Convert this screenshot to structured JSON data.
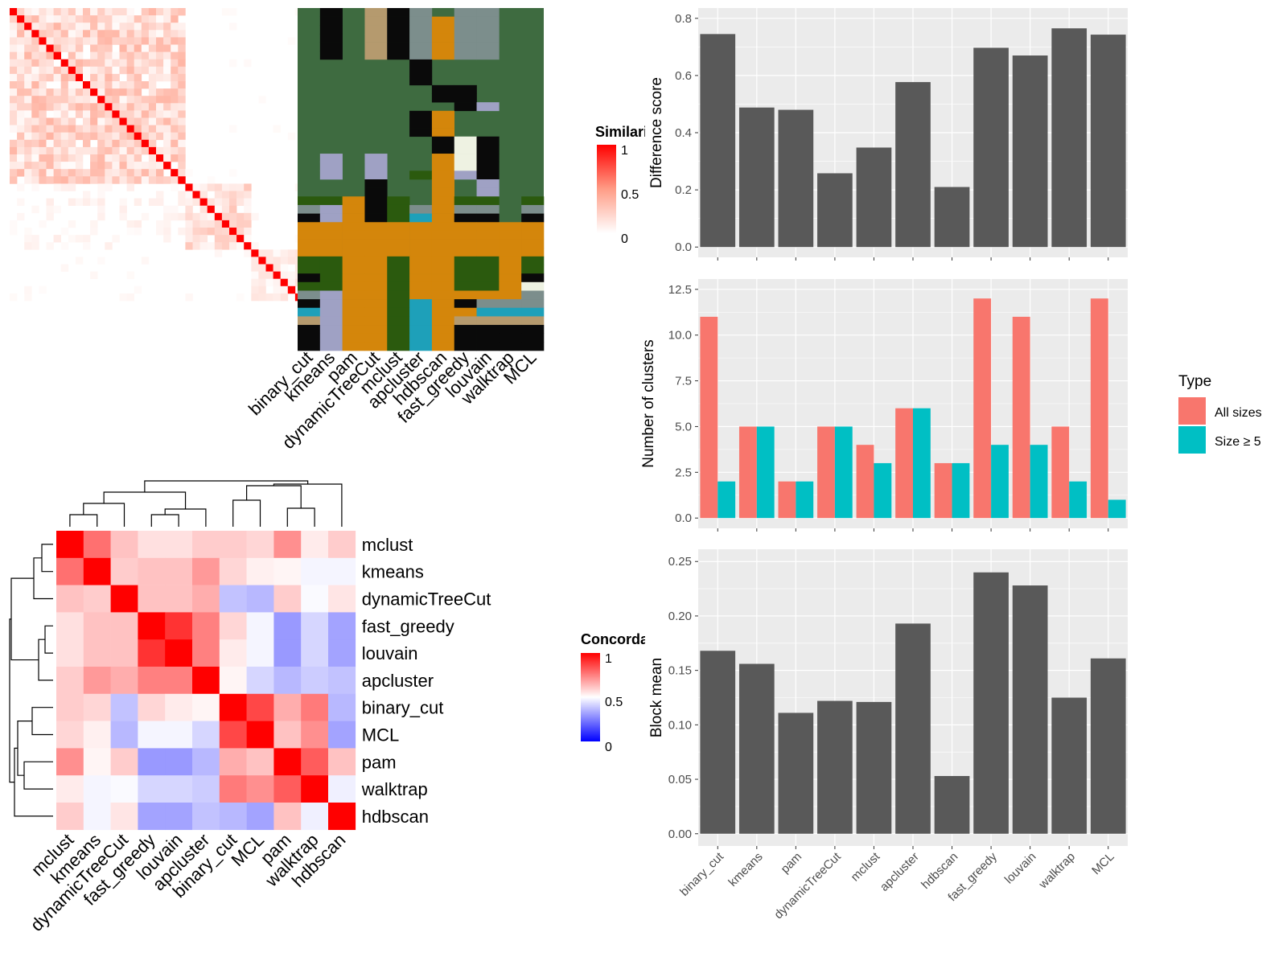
{
  "colors": {
    "panel_bg": "#EBEBEB",
    "grid": "#FFFFFF",
    "bar": "#595959",
    "all_sizes": "#F8766D",
    "size_ge_5": "#00BFC4",
    "sim_high": "#FF0000",
    "conc_low": "#0000FF",
    "conc_high": "#FF0000",
    "cat_green": "#3E6B40",
    "cat_orange": "#D4860B",
    "cat_black": "#0A0A0A",
    "cat_darkgreen": "#2B5A0E",
    "cat_lavender": "#9FA1C4",
    "cat_grey": "#7C8E8C",
    "cat_teal": "#1EA0B9",
    "cat_tan": "#B59A6E",
    "cat_cream": "#EEF2E2"
  },
  "similarity_legend": {
    "title": "Similarity",
    "ticks": [
      "1",
      "0.5",
      "0"
    ]
  },
  "concordance_legend": {
    "title": "Concordance",
    "ticks": [
      "1",
      "0.5",
      "0"
    ]
  },
  "partition_columns": [
    "binary_cut",
    "kmeans",
    "pam",
    "dynamicTreeCut",
    "mclust",
    "apcluster",
    "hdbscan",
    "fast_greedy",
    "louvain",
    "walktrap",
    "MCL"
  ],
  "concordance_rows": [
    "mclust",
    "kmeans",
    "dynamicTreeCut",
    "fast_greedy",
    "louvain",
    "apcluster",
    "binary_cut",
    "MCL",
    "pam",
    "walktrap",
    "hdbscan"
  ],
  "concordance_cols": [
    "mclust",
    "kmeans",
    "dynamicTreeCut",
    "fast_greedy",
    "louvain",
    "apcluster",
    "binary_cut",
    "MCL",
    "pam",
    "walktrap",
    "hdbscan"
  ],
  "concordance_values": [
    [
      1.0,
      0.78,
      0.62,
      0.56,
      0.56,
      0.6,
      0.6,
      0.58,
      0.72,
      0.54,
      0.6
    ],
    [
      0.78,
      1.0,
      0.6,
      0.62,
      0.62,
      0.7,
      0.58,
      0.53,
      0.52,
      0.48,
      0.48
    ],
    [
      0.62,
      0.6,
      1.0,
      0.62,
      0.62,
      0.66,
      0.38,
      0.36,
      0.6,
      0.49,
      0.55
    ],
    [
      0.56,
      0.62,
      0.62,
      1.0,
      0.9,
      0.75,
      0.58,
      0.48,
      0.3,
      0.42,
      0.32
    ],
    [
      0.56,
      0.62,
      0.62,
      0.9,
      1.0,
      0.75,
      0.54,
      0.48,
      0.3,
      0.42,
      0.32
    ],
    [
      0.6,
      0.7,
      0.66,
      0.75,
      0.75,
      1.0,
      0.52,
      0.42,
      0.36,
      0.4,
      0.38
    ],
    [
      0.6,
      0.58,
      0.38,
      0.58,
      0.54,
      0.52,
      1.0,
      0.86,
      0.66,
      0.76,
      0.36
    ],
    [
      0.58,
      0.53,
      0.36,
      0.48,
      0.48,
      0.42,
      0.86,
      1.0,
      0.62,
      0.72,
      0.32
    ],
    [
      0.72,
      0.52,
      0.6,
      0.3,
      0.3,
      0.36,
      0.66,
      0.62,
      1.0,
      0.82,
      0.62
    ],
    [
      0.54,
      0.48,
      0.49,
      0.42,
      0.42,
      0.4,
      0.76,
      0.72,
      0.82,
      1.0,
      0.47
    ],
    [
      0.6,
      0.48,
      0.55,
      0.32,
      0.32,
      0.38,
      0.36,
      0.32,
      0.62,
      0.47,
      1.0
    ]
  ],
  "chart_data": [
    {
      "type": "bar",
      "categories": [
        "binary_cut",
        "kmeans",
        "pam",
        "dynamicTreeCut",
        "mclust",
        "apcluster",
        "hdbscan",
        "fast_greedy",
        "louvain",
        "walktrap",
        "MCL"
      ],
      "values": [
        0.745,
        0.488,
        0.48,
        0.258,
        0.348,
        0.577,
        0.21,
        0.697,
        0.67,
        0.765,
        0.743
      ],
      "ylabel": "Difference score",
      "ylim": [
        0,
        0.8
      ],
      "yticks": [
        "0.0",
        "0.2",
        "0.4",
        "0.6",
        "0.8"
      ],
      "grid": true
    },
    {
      "type": "bar",
      "categories": [
        "binary_cut",
        "kmeans",
        "pam",
        "dynamicTreeCut",
        "mclust",
        "apcluster",
        "hdbscan",
        "fast_greedy",
        "louvain",
        "walktrap",
        "MCL"
      ],
      "series": [
        {
          "name": "All sizes",
          "values": [
            11,
            5,
            2,
            5,
            4,
            6,
            3,
            12,
            11,
            5,
            12
          ]
        },
        {
          "name": "Size ≥ 5",
          "values": [
            2,
            5,
            2,
            5,
            3,
            6,
            3,
            4,
            4,
            2,
            1
          ]
        }
      ],
      "ylabel": "Number of clusters",
      "ylim": [
        0,
        12.5
      ],
      "yticks": [
        "0.0",
        "2.5",
        "5.0",
        "7.5",
        "10.0",
        "12.5"
      ],
      "legend_title": "Type",
      "legend_position": "right",
      "grid": true
    },
    {
      "type": "bar",
      "categories": [
        "binary_cut",
        "kmeans",
        "pam",
        "dynamicTreeCut",
        "mclust",
        "apcluster",
        "hdbscan",
        "fast_greedy",
        "louvain",
        "walktrap",
        "MCL"
      ],
      "values": [
        0.168,
        0.156,
        0.111,
        0.122,
        0.121,
        0.193,
        0.053,
        0.24,
        0.228,
        0.125,
        0.161
      ],
      "ylabel": "Block mean",
      "ylim": [
        0,
        0.25
      ],
      "yticks": [
        "0.00",
        "0.05",
        "0.10",
        "0.15",
        "0.20",
        "0.25"
      ],
      "grid": true
    }
  ]
}
